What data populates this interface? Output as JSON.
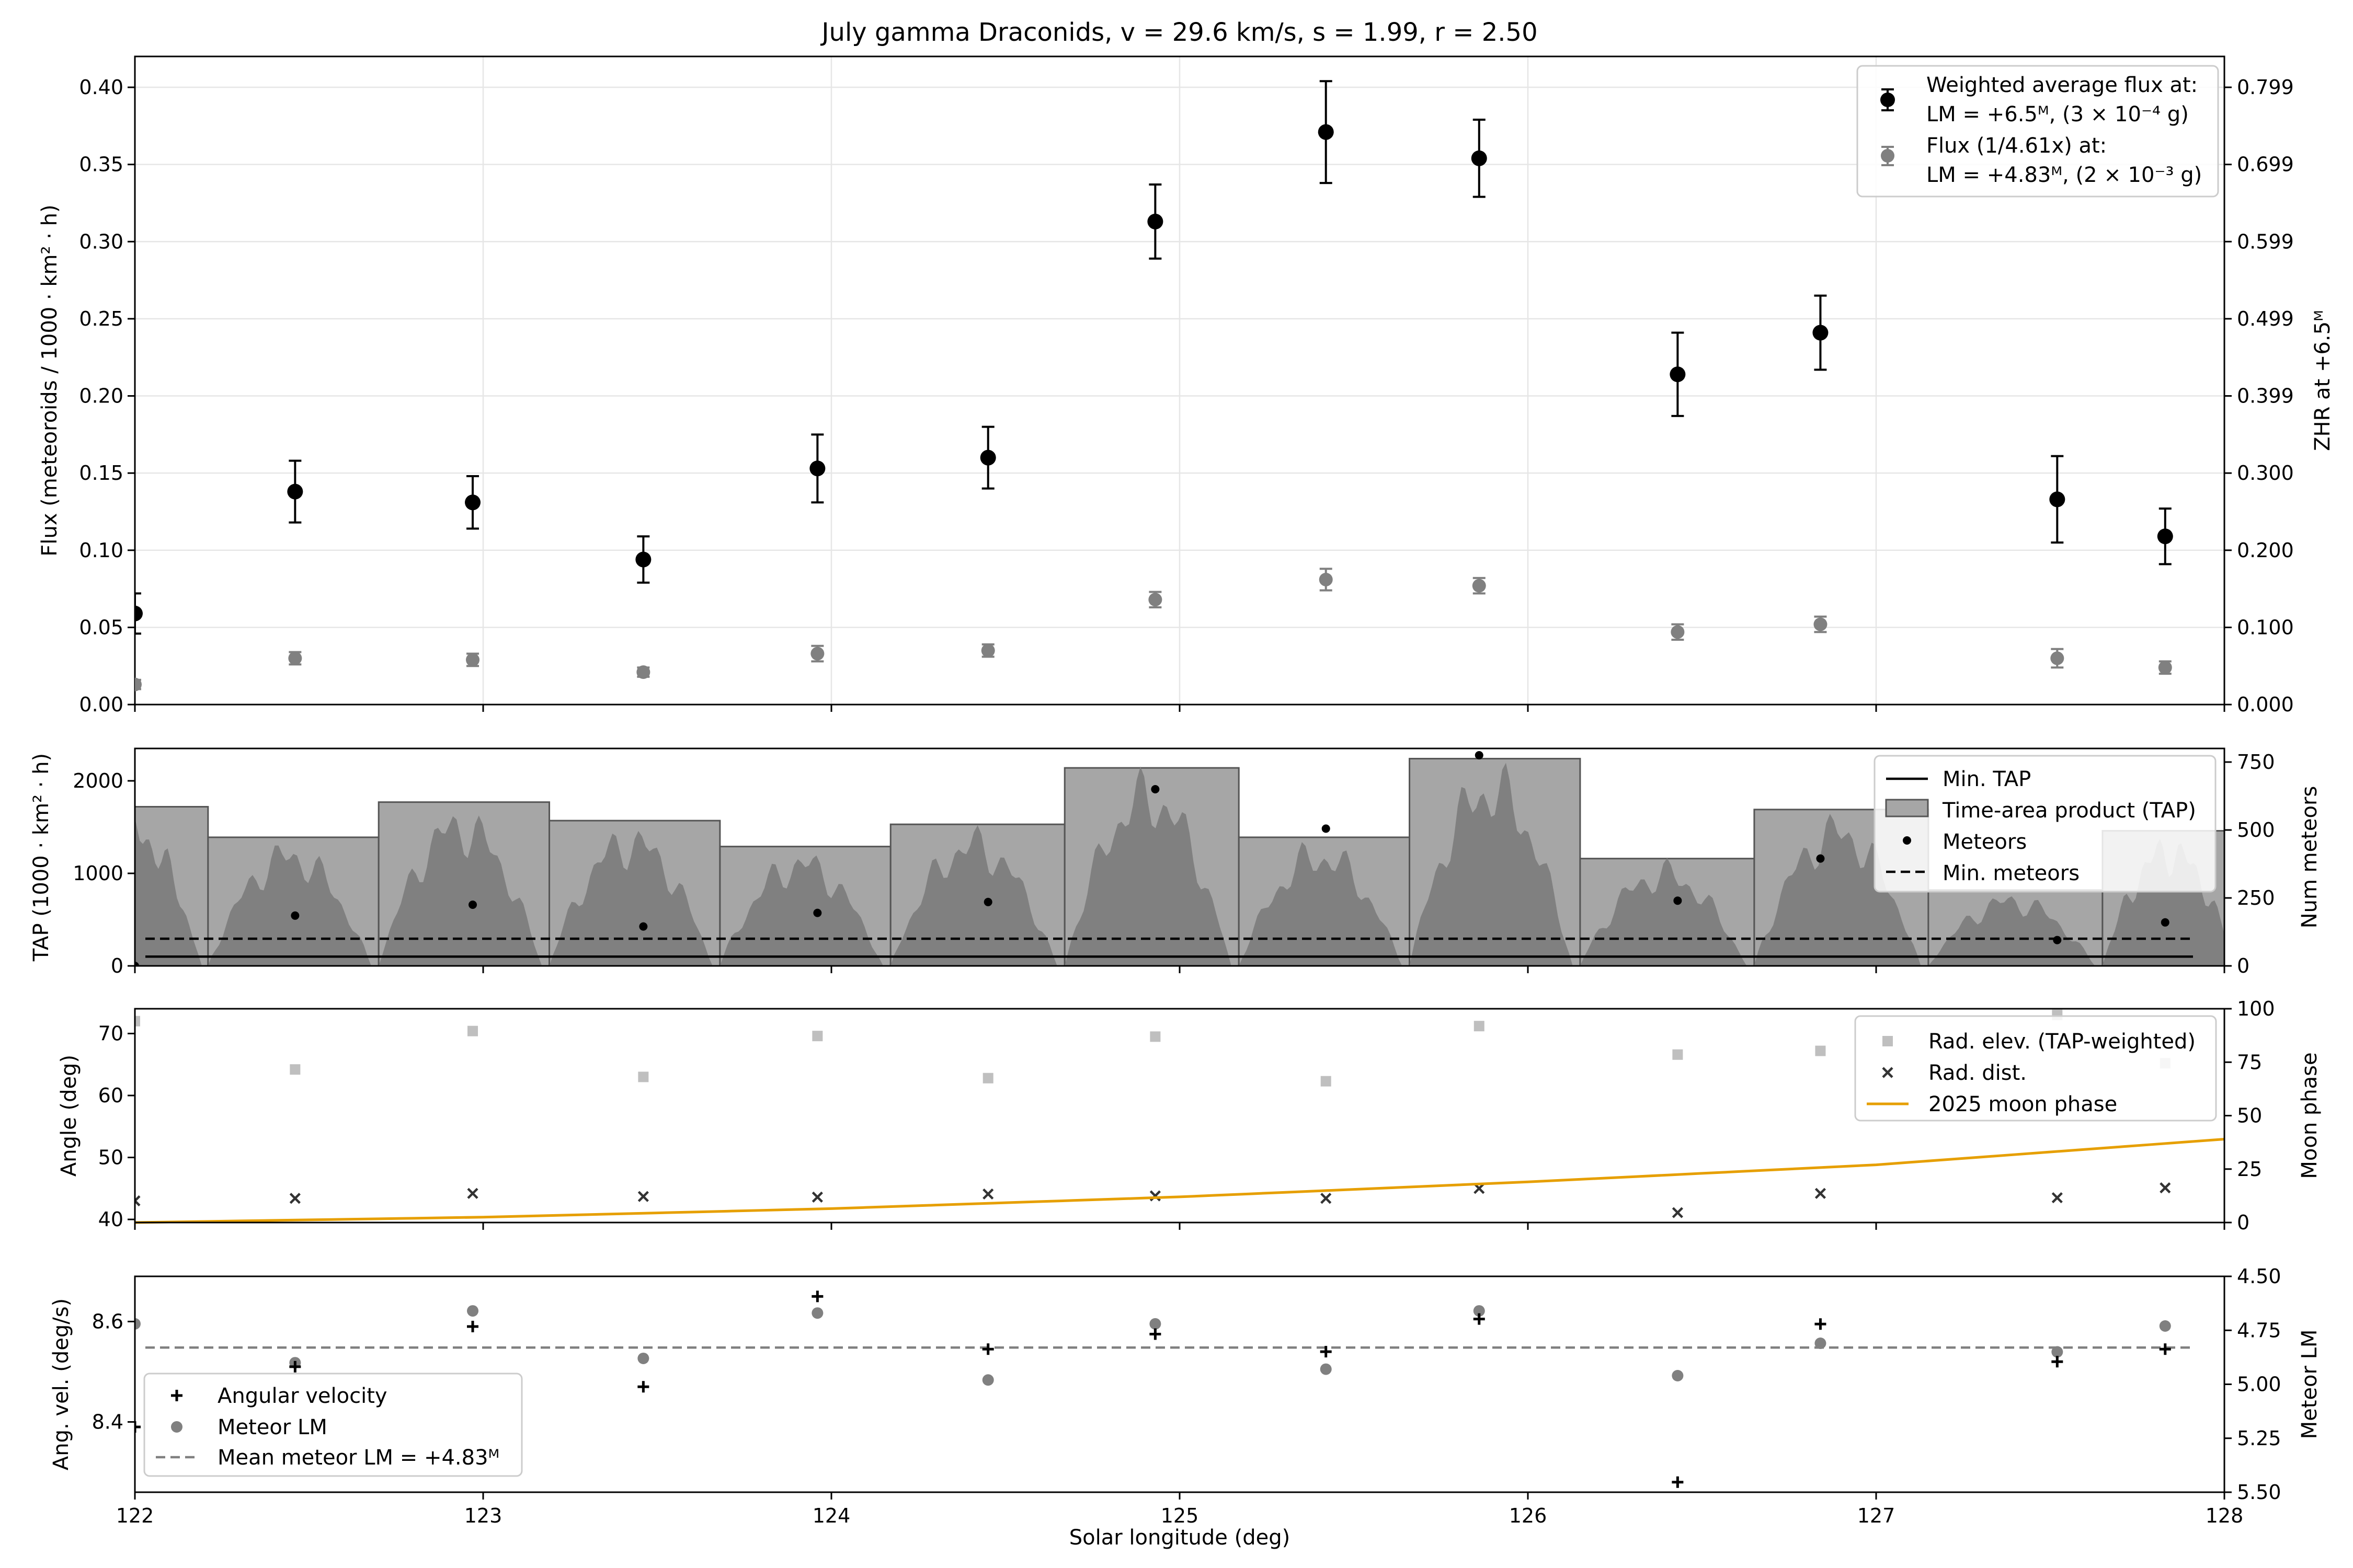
{
  "title": "July gamma Draconids, v = 29.6 km/s, s = 1.99, r = 2.50",
  "xlabel": "Solar longitude (deg)",
  "chart_data": [
    {
      "type": "scatter",
      "panel": "flux",
      "xlim": [
        122,
        128
      ],
      "ylim": [
        0,
        0.42
      ],
      "ylabel": "Flux (meteoroids / 1000 · km² · h)",
      "y2label": "ZHR at +6.5ᴹ",
      "y2_ticks": [
        "0.000",
        "0.100",
        "0.200",
        "0.300",
        "0.399",
        "0.499",
        "0.599",
        "0.699",
        "0.799"
      ],
      "xticks": [
        "122",
        "123",
        "124",
        "125",
        "126",
        "127",
        "128"
      ],
      "yticks": [
        "0.00",
        "0.05",
        "0.10",
        "0.15",
        "0.20",
        "0.25",
        "0.30",
        "0.35",
        "0.40"
      ],
      "grid": true,
      "legend_position": "upper right",
      "x": [
        122.0,
        122.46,
        122.97,
        123.46,
        123.96,
        124.45,
        124.93,
        125.42,
        125.86,
        126.43,
        126.84,
        127.52,
        127.83
      ],
      "series": [
        {
          "name": "Weighted average flux at: LM = +6.5ᴹ, (3 × 10⁻⁴ g)",
          "legend_lines": [
            "Weighted average flux at:",
            "LM = +6.5ᴹ, (3 × 10⁻⁴ g)"
          ],
          "color": "#000000",
          "y": [
            0.059,
            0.138,
            0.131,
            0.094,
            0.153,
            0.16,
            0.313,
            0.371,
            0.354,
            0.214,
            0.241,
            0.133,
            0.109
          ],
          "err": [
            0.013,
            0.02,
            0.017,
            0.015,
            0.022,
            0.02,
            0.024,
            0.033,
            0.025,
            0.027,
            0.024,
            0.028,
            0.018
          ]
        },
        {
          "name": "Flux (1/4.61x) at: LM = +4.83ᴹ, (2 × 10⁻³ g)",
          "legend_lines": [
            "Flux (1/4.61x) at:",
            "LM = +4.83ᴹ, (2 × 10⁻³ g)"
          ],
          "color": "#808080",
          "y": [
            0.013,
            0.03,
            0.029,
            0.021,
            0.033,
            0.035,
            0.068,
            0.081,
            0.077,
            0.047,
            0.052,
            0.03,
            0.024
          ],
          "err": [
            0.003,
            0.004,
            0.004,
            0.003,
            0.005,
            0.004,
            0.005,
            0.007,
            0.005,
            0.005,
            0.005,
            0.006,
            0.004
          ]
        }
      ]
    },
    {
      "type": "bar",
      "panel": "tap",
      "xlim": [
        122,
        128
      ],
      "ylim": [
        0,
        2350
      ],
      "y2lim": [
        0,
        800
      ],
      "ylabel": "TAP (1000 · km² · h)",
      "y2label": "Num meteors",
      "yticks": [
        "0",
        "1000",
        "2000"
      ],
      "y2_ticks": [
        "0",
        "250",
        "500",
        "750"
      ],
      "legend_position": "upper right",
      "legend": [
        "Min. TAP",
        "Time-area product (TAP)",
        "Meteors",
        "Min. meteors"
      ],
      "bins": [
        {
          "start": 121.8,
          "end": 122.21,
          "tap": 1720
        },
        {
          "start": 122.21,
          "end": 122.7,
          "tap": 1390
        },
        {
          "start": 122.7,
          "end": 123.19,
          "tap": 1770
        },
        {
          "start": 123.19,
          "end": 123.68,
          "tap": 1570
        },
        {
          "start": 123.68,
          "end": 124.17,
          "tap": 1290
        },
        {
          "start": 124.17,
          "end": 124.67,
          "tap": 1530
        },
        {
          "start": 124.67,
          "end": 125.17,
          "tap": 2140
        },
        {
          "start": 125.17,
          "end": 125.66,
          "tap": 1390
        },
        {
          "start": 125.66,
          "end": 126.15,
          "tap": 2240
        },
        {
          "start": 126.15,
          "end": 126.65,
          "tap": 1160
        },
        {
          "start": 126.65,
          "end": 127.15,
          "tap": 1690
        },
        {
          "start": 127.15,
          "end": 127.65,
          "tap": 820
        },
        {
          "start": 127.65,
          "end": 128.05,
          "tap": 1460
        }
      ],
      "meteors": [
        0,
        185,
        225,
        145,
        195,
        235,
        650,
        505,
        775,
        240,
        395,
        95,
        160
      ],
      "min_tap": 100,
      "min_meteors": 100
    },
    {
      "type": "scatter",
      "panel": "angles",
      "xlim": [
        122,
        128
      ],
      "ylim": [
        39.5,
        74
      ],
      "y2lim": [
        0,
        100
      ],
      "ylabel": "Angle (deg)",
      "y2label": "Moon phase",
      "yticks": [
        "40",
        "50",
        "60",
        "70"
      ],
      "y2_ticks": [
        "0",
        "25",
        "50",
        "75",
        "100"
      ],
      "legend_position": "upper right",
      "series": [
        {
          "name": "Rad. elev. (TAP-weighted)",
          "color": "#bfbfbf",
          "marker": "square",
          "y": [
            72.0,
            64.2,
            70.4,
            63.0,
            69.6,
            62.8,
            69.5,
            62.3,
            71.2,
            66.6,
            67.2,
            73.0,
            65.2
          ]
        },
        {
          "name": "Rad. dist.",
          "color": "#333333",
          "marker": "x",
          "y": [
            43.0,
            43.4,
            44.2,
            43.7,
            43.6,
            44.1,
            43.8,
            43.4,
            45.0,
            41.1,
            44.2,
            43.5,
            45.1
          ]
        },
        {
          "name": "2025 moon phase",
          "color": "#e69f00",
          "marker": "line",
          "x": [
            122,
            123,
            124,
            125,
            126,
            127,
            128
          ],
          "y": [
            0,
            2.5,
            6.5,
            12,
            19,
            27,
            39
          ]
        }
      ]
    },
    {
      "type": "scatter",
      "panel": "velocity",
      "xlim": [
        122,
        128
      ],
      "ylim": [
        8.26,
        8.69
      ],
      "y2lim": [
        5.5,
        4.5
      ],
      "ylabel": "Ang. vel. (deg/s)",
      "y2label": "Meteor LM",
      "yticks": [
        "8.4",
        "8.6"
      ],
      "y2_ticks": [
        "4.50",
        "4.75",
        "5.00",
        "5.25",
        "5.50"
      ],
      "legend_position": "lower left",
      "series": [
        {
          "name": "Angular velocity",
          "color": "#000000",
          "marker": "plus",
          "axis": "left",
          "y": [
            8.39,
            8.51,
            8.59,
            8.47,
            8.65,
            8.545,
            8.575,
            8.54,
            8.605,
            8.28,
            8.595,
            8.52,
            8.545
          ]
        },
        {
          "name": "Meteor LM",
          "color": "#808080",
          "marker": "circle",
          "axis": "right",
          "y": [
            4.72,
            4.9,
            4.66,
            4.88,
            4.67,
            4.98,
            4.72,
            4.93,
            4.66,
            4.96,
            4.81,
            4.85,
            4.73
          ]
        },
        {
          "name": "Mean meteor LM = +4.83ᴹ",
          "color": "#808080",
          "marker": "dashed",
          "axis": "right",
          "value": 4.83
        }
      ]
    }
  ]
}
